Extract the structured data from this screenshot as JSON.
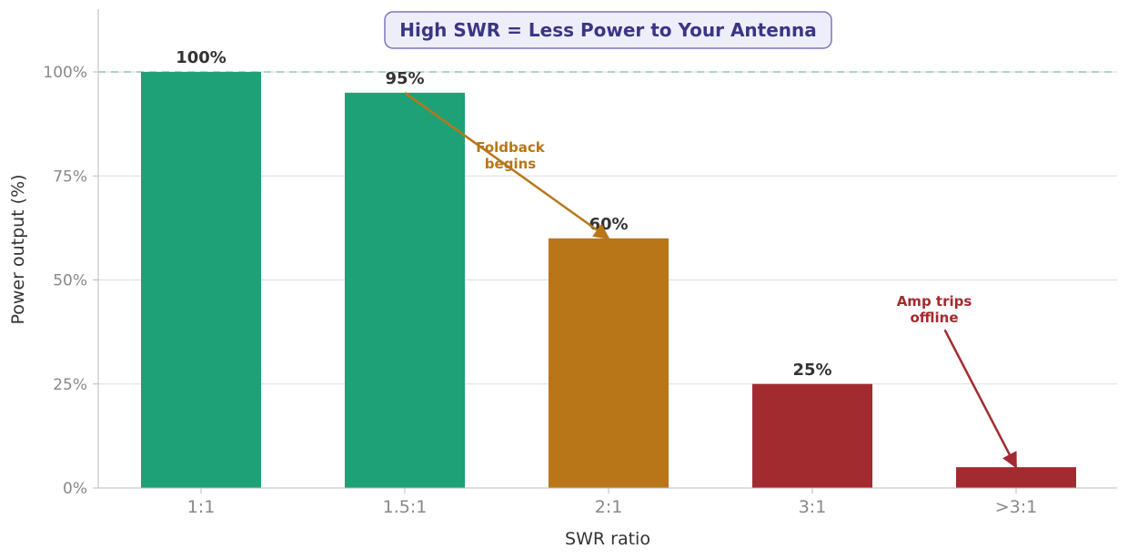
{
  "chart_data": {
    "type": "bar",
    "title": "High SWR = Less Power to Your Antenna",
    "xlabel": "SWR ratio",
    "ylabel": "Power output (%)",
    "categories": [
      "1:1",
      "1.5:1",
      "2:1",
      "3:1",
      ">3:1"
    ],
    "values": [
      100,
      95,
      60,
      25,
      5
    ],
    "data_labels": [
      "100%",
      "95%",
      "60%",
      "25%",
      ""
    ],
    "bar_colors": [
      "#1ea177",
      "#1ea177",
      "#b87619",
      "#a22b2f",
      "#a22b2f"
    ],
    "ylim": [
      0,
      115
    ],
    "yticks": [
      0,
      25,
      50,
      75,
      100
    ],
    "ytick_labels": [
      "0%",
      "25%",
      "50%",
      "75%",
      "100%"
    ],
    "grid": "horizontal",
    "reference_line": {
      "y": 100,
      "color": "#8fc9b2",
      "style": "dashed"
    },
    "annotations": [
      {
        "lines": [
          "Foldback",
          "begins"
        ],
        "color": "#b87619",
        "from": {
          "x": 1,
          "y": 95
        },
        "to": {
          "x": 2,
          "y": 60
        }
      },
      {
        "lines": [
          "Amp trips",
          "offline"
        ],
        "color": "#a22b2f",
        "from": {
          "x": 3.65,
          "y": 38
        },
        "to": {
          "x": 4,
          "y": 5
        }
      }
    ]
  }
}
